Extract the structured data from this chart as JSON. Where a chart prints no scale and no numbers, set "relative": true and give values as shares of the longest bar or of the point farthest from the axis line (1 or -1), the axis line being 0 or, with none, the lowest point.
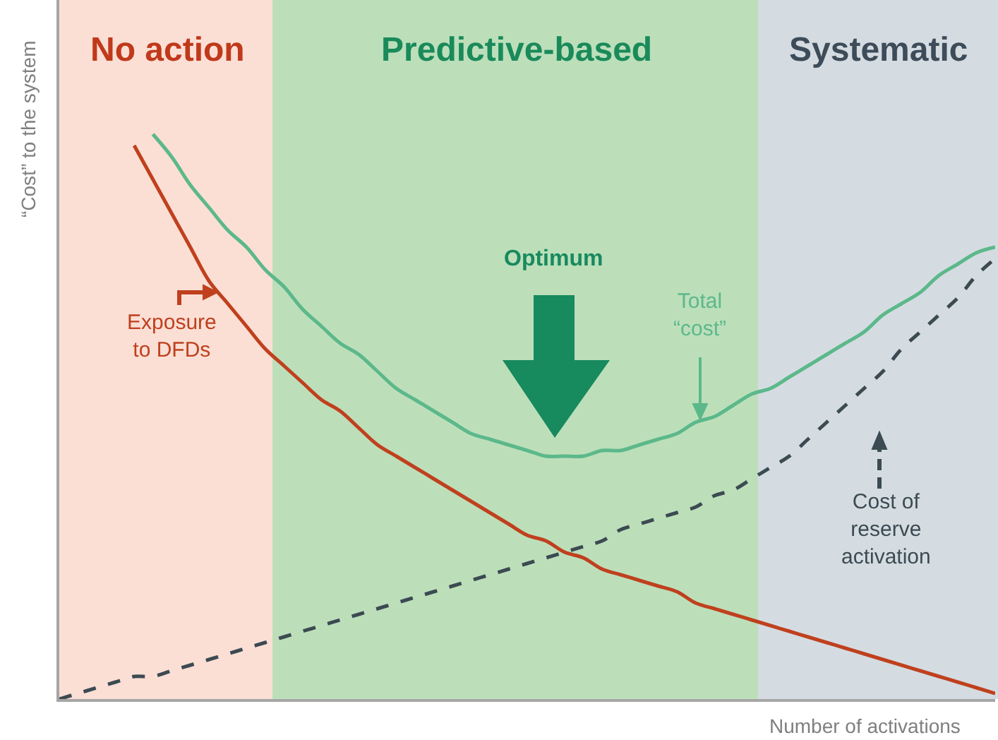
{
  "chart_data": {
    "type": "line",
    "relative": true,
    "ylabel": "“Cost” to the system",
    "xlabel": "Number of activations",
    "categories": [
      null,
      null,
      null,
      null,
      null,
      null,
      null,
      null,
      null,
      null,
      null,
      null,
      null,
      null,
      null,
      null,
      null,
      null,
      null,
      null,
      null,
      null,
      null,
      null,
      null,
      null,
      null,
      null,
      null,
      null,
      null,
      null,
      null,
      null,
      null,
      null,
      null,
      null,
      null,
      null,
      null,
      null,
      null,
      null,
      null,
      null,
      null,
      null,
      null,
      null,
      null
    ],
    "series": [
      {
        "color": "#c0401e",
        "line_style": "solid",
        "values": [
          null,
          null,
          null,
          null,
          0.98,
          0.92,
          0.86,
          0.8,
          0.74,
          0.7,
          0.66,
          0.62,
          0.59,
          0.56,
          0.53,
          0.51,
          0.48,
          0.45,
          0.43,
          0.41,
          0.39,
          0.37,
          0.35,
          0.33,
          0.31,
          0.29,
          0.28,
          0.26,
          0.25,
          0.23,
          0.22,
          0.21,
          0.2,
          0.19,
          0.17,
          0.16,
          0.15,
          0.14,
          0.13,
          0.12,
          0.11,
          0.1,
          0.09,
          0.08,
          0.07,
          0.06,
          0.05,
          0.04,
          0.03,
          0.02,
          0.01
        ]
      },
      {
        "color": "#5cb88a",
        "line_style": "solid",
        "values": [
          null,
          null,
          null,
          null,
          null,
          1.0,
          0.96,
          0.91,
          0.87,
          0.83,
          0.8,
          0.76,
          0.73,
          0.69,
          0.66,
          0.63,
          0.61,
          0.58,
          0.55,
          0.53,
          0.51,
          0.49,
          0.47,
          0.46,
          0.45,
          0.44,
          0.43,
          0.43,
          0.43,
          0.44,
          0.44,
          0.45,
          0.46,
          0.47,
          0.49,
          0.5,
          0.52,
          0.54,
          0.55,
          0.57,
          0.59,
          0.61,
          0.63,
          0.65,
          0.68,
          0.7,
          0.72,
          0.75,
          0.77,
          0.79,
          0.8
        ]
      },
      {
        "color": "#3c4a52",
        "line_style": "dashed",
        "values": [
          0,
          0.01,
          0.02,
          0.03,
          0.04,
          0.04,
          0.05,
          0.06,
          0.07,
          0.08,
          0.09,
          0.1,
          0.11,
          0.12,
          0.13,
          0.14,
          0.15,
          0.16,
          0.17,
          0.18,
          0.19,
          0.2,
          0.21,
          0.22,
          0.23,
          0.24,
          0.25,
          0.26,
          0.27,
          0.28,
          0.3,
          0.31,
          0.32,
          0.33,
          0.34,
          0.36,
          0.37,
          0.39,
          0.41,
          0.43,
          0.46,
          0.49,
          0.52,
          0.55,
          0.58,
          0.62,
          0.65,
          0.68,
          0.71,
          0.75,
          0.78
        ]
      }
    ],
    "annotations": [
      "No action",
      "Predictive-based",
      "Systematic",
      "Exposure\nto DFDs",
      "Optimum",
      "Total\n“cost”",
      "Cost of\nreserve\nactivation"
    ],
    "marker": "none",
    "legend": false
  }
}
